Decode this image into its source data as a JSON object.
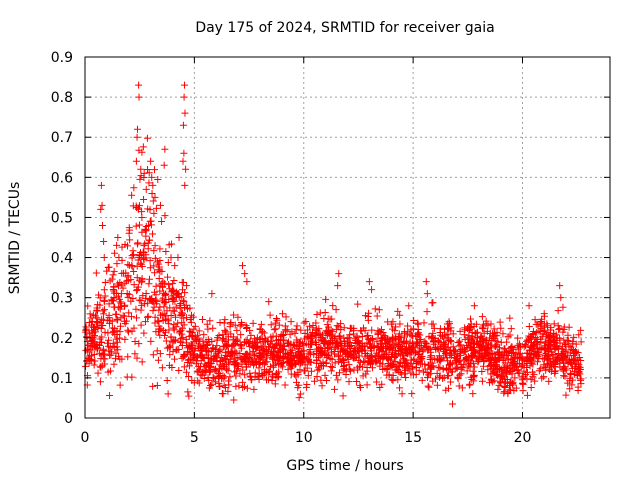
{
  "chart_data": {
    "type": "scatter",
    "title": "Day 175 of 2024, SRMTID for receiver gaia",
    "xlabel": "GPS time / hours",
    "ylabel": "SRMTID / TECUs",
    "xlim": [
      0,
      24
    ],
    "ylim": [
      0,
      0.9
    ],
    "xticks": [
      "0",
      "5",
      "10",
      "15",
      "20"
    ],
    "yticks": [
      "0",
      "0.1",
      "0.2",
      "0.3",
      "0.4",
      "0.5",
      "0.6",
      "0.7",
      "0.8",
      "0.9"
    ],
    "grid": true,
    "marker": "+",
    "color": "#ff0000",
    "envelope": [
      [
        0.0,
        0.18,
        0.06
      ],
      [
        0.5,
        0.2,
        0.07
      ],
      [
        1.0,
        0.24,
        0.1
      ],
      [
        1.5,
        0.27,
        0.12
      ],
      [
        2.0,
        0.33,
        0.14
      ],
      [
        2.5,
        0.4,
        0.18
      ],
      [
        3.0,
        0.38,
        0.16
      ],
      [
        3.5,
        0.3,
        0.12
      ],
      [
        4.0,
        0.24,
        0.1
      ],
      [
        4.5,
        0.22,
        0.09
      ],
      [
        5.0,
        0.16,
        0.05
      ],
      [
        6.0,
        0.14,
        0.05
      ],
      [
        7.0,
        0.16,
        0.06
      ],
      [
        8.0,
        0.16,
        0.05
      ],
      [
        9.0,
        0.17,
        0.05
      ],
      [
        10.0,
        0.15,
        0.05
      ],
      [
        11.0,
        0.19,
        0.06
      ],
      [
        12.0,
        0.17,
        0.05
      ],
      [
        13.0,
        0.17,
        0.05
      ],
      [
        14.0,
        0.16,
        0.05
      ],
      [
        15.0,
        0.17,
        0.05
      ],
      [
        16.0,
        0.15,
        0.05
      ],
      [
        17.0,
        0.16,
        0.05
      ],
      [
        18.0,
        0.18,
        0.05
      ],
      [
        19.0,
        0.14,
        0.05
      ],
      [
        20.0,
        0.14,
        0.05
      ],
      [
        21.0,
        0.19,
        0.05
      ],
      [
        22.0,
        0.15,
        0.05
      ],
      [
        22.7,
        0.13,
        0.05
      ]
    ],
    "point_count": 2600,
    "x_end": 22.7,
    "highlights": [
      [
        2.45,
        0.83
      ],
      [
        2.47,
        0.8
      ],
      [
        2.4,
        0.72
      ],
      [
        2.38,
        0.7
      ],
      [
        4.55,
        0.83
      ],
      [
        4.53,
        0.8
      ],
      [
        4.57,
        0.76
      ],
      [
        4.5,
        0.73
      ],
      [
        4.52,
        0.66
      ],
      [
        4.48,
        0.64
      ],
      [
        4.6,
        0.62
      ],
      [
        4.56,
        0.58
      ],
      [
        3.65,
        0.67
      ],
      [
        3.62,
        0.63
      ],
      [
        3.0,
        0.64
      ],
      [
        3.05,
        0.6
      ],
      [
        2.35,
        0.64
      ],
      [
        2.55,
        0.62
      ],
      [
        3.1,
        0.58
      ],
      [
        2.8,
        0.57
      ],
      [
        0.75,
        0.58
      ],
      [
        0.78,
        0.53
      ],
      [
        0.72,
        0.52
      ],
      [
        0.8,
        0.48
      ],
      [
        0.85,
        0.44
      ],
      [
        0.88,
        0.4
      ],
      [
        3.2,
        0.55
      ],
      [
        3.15,
        0.51
      ],
      [
        2.6,
        0.5
      ],
      [
        2.9,
        0.48
      ],
      [
        3.45,
        0.53
      ],
      [
        3.5,
        0.49
      ],
      [
        4.3,
        0.45
      ],
      [
        4.25,
        0.4
      ],
      [
        4.1,
        0.38
      ],
      [
        1.5,
        0.45
      ],
      [
        1.55,
        0.4
      ],
      [
        7.2,
        0.38
      ],
      [
        7.3,
        0.36
      ],
      [
        7.4,
        0.34
      ],
      [
        11.6,
        0.36
      ],
      [
        11.55,
        0.33
      ],
      [
        13.0,
        0.34
      ],
      [
        13.1,
        0.32
      ],
      [
        14.8,
        0.28
      ],
      [
        15.6,
        0.34
      ],
      [
        15.65,
        0.31
      ],
      [
        17.8,
        0.28
      ],
      [
        20.3,
        0.28
      ],
      [
        21.7,
        0.33
      ],
      [
        21.75,
        0.3
      ],
      [
        5.8,
        0.31
      ],
      [
        8.4,
        0.29
      ],
      [
        6.8,
        0.045
      ],
      [
        16.8,
        0.035
      ],
      [
        3.8,
        0.06
      ]
    ]
  }
}
